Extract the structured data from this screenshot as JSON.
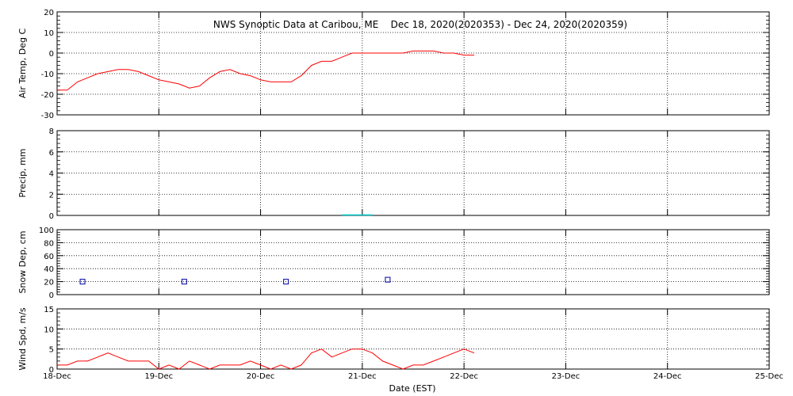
{
  "chart_data": {
    "title": "NWS Synoptic Data at Caribou, ME    Dec 18, 2020(2020353) - Dec 24, 2020(2020359)",
    "xlabel": "Date (EST)",
    "x_ticks": [
      "18-Dec",
      "19-Dec",
      "20-Dec",
      "21-Dec",
      "22-Dec",
      "23-Dec",
      "24-Dec",
      "25-Dec"
    ],
    "x_range_days": [
      0,
      7
    ],
    "grid": true,
    "colors": {
      "line": "#ff0000",
      "precip": "#00c8c8",
      "snow": "#0000a0",
      "axis": "#000000"
    },
    "panels": [
      {
        "id": "air-temp",
        "type": "line",
        "ylabel": "Air Temp, Deg C",
        "ylim": [
          -30,
          20
        ],
        "yticks": [
          -30,
          -20,
          -10,
          0,
          10,
          20
        ],
        "x": [
          0,
          0.1,
          0.2,
          0.3,
          0.4,
          0.5,
          0.6,
          0.7,
          0.8,
          0.9,
          1.0,
          1.1,
          1.2,
          1.3,
          1.4,
          1.5,
          1.6,
          1.7,
          1.8,
          1.9,
          2.0,
          2.1,
          2.2,
          2.3,
          2.4,
          2.5,
          2.6,
          2.7,
          2.8,
          2.9,
          3.0,
          3.1,
          3.2,
          3.3,
          3.4,
          3.5,
          3.6,
          3.7,
          3.8,
          3.9,
          4.0,
          4.1
        ],
        "values": [
          -18,
          -18,
          -14,
          -12,
          -10,
          -9,
          -8,
          -8,
          -9,
          -11,
          -13,
          -14,
          -15,
          -17,
          -16,
          -12,
          -9,
          -8,
          -10,
          -11,
          -13,
          -14,
          -14,
          -14,
          -11,
          -6,
          -4,
          -4,
          -2,
          0,
          0,
          0,
          0,
          0,
          0,
          1,
          1,
          1,
          0,
          0,
          -1,
          -1
        ]
      },
      {
        "id": "precip",
        "type": "bar",
        "ylabel": "Precip, mm",
        "ylim": [
          0,
          8
        ],
        "yticks": [
          0,
          2,
          4,
          6,
          8
        ],
        "x": [
          2.85,
          2.95,
          3.05
        ],
        "values": [
          0.1,
          0.1,
          0.1
        ]
      },
      {
        "id": "snow-depth",
        "type": "scatter",
        "ylabel": "Snow Dep, cm",
        "ylim": [
          0,
          100
        ],
        "yticks": [
          0,
          20,
          40,
          60,
          80,
          100
        ],
        "x": [
          0.25,
          1.25,
          2.25,
          3.25
        ],
        "values": [
          20,
          20,
          20,
          23
        ]
      },
      {
        "id": "wind-speed",
        "type": "line",
        "ylabel": "Wind Spd, m/s",
        "ylim": [
          0,
          15
        ],
        "yticks": [
          0,
          5,
          10,
          15
        ],
        "x": [
          0,
          0.1,
          0.2,
          0.3,
          0.4,
          0.5,
          0.6,
          0.7,
          0.8,
          0.9,
          1.0,
          1.1,
          1.2,
          1.3,
          1.4,
          1.5,
          1.6,
          1.7,
          1.8,
          1.9,
          2.0,
          2.1,
          2.2,
          2.3,
          2.4,
          2.5,
          2.6,
          2.7,
          2.8,
          2.9,
          3.0,
          3.1,
          3.2,
          3.3,
          3.4,
          3.5,
          3.6,
          3.7,
          3.8,
          3.9,
          4.0,
          4.1
        ],
        "values": [
          1,
          1,
          2,
          2,
          3,
          4,
          3,
          2,
          2,
          2,
          0,
          1,
          0,
          2,
          1,
          0,
          1,
          1,
          1,
          2,
          1,
          0,
          1,
          0,
          1,
          4,
          5,
          3,
          4,
          5,
          5,
          4,
          2,
          1,
          0,
          1,
          1,
          2,
          3,
          4,
          5,
          4
        ]
      }
    ]
  }
}
